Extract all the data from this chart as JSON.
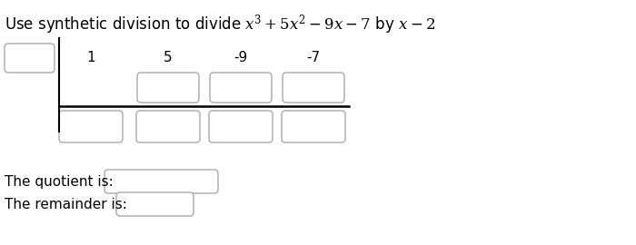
{
  "title_plain": "Use synthetic division to divide ",
  "title_math": "x³ + 5x² − 9x − 7 by x − 2",
  "coefficients": [
    "1",
    "5",
    "-9",
    "-7"
  ],
  "background_color": "#ffffff",
  "box_edge_color": "#aaaaaa",
  "quotient_label": "The quotient is:",
  "remainder_label": "The remainder is:",
  "title_fontsize": 12,
  "label_fontsize": 11,
  "coeff_fontsize": 11,
  "fig_width": 7.0,
  "fig_height": 2.7,
  "dpi": 100
}
